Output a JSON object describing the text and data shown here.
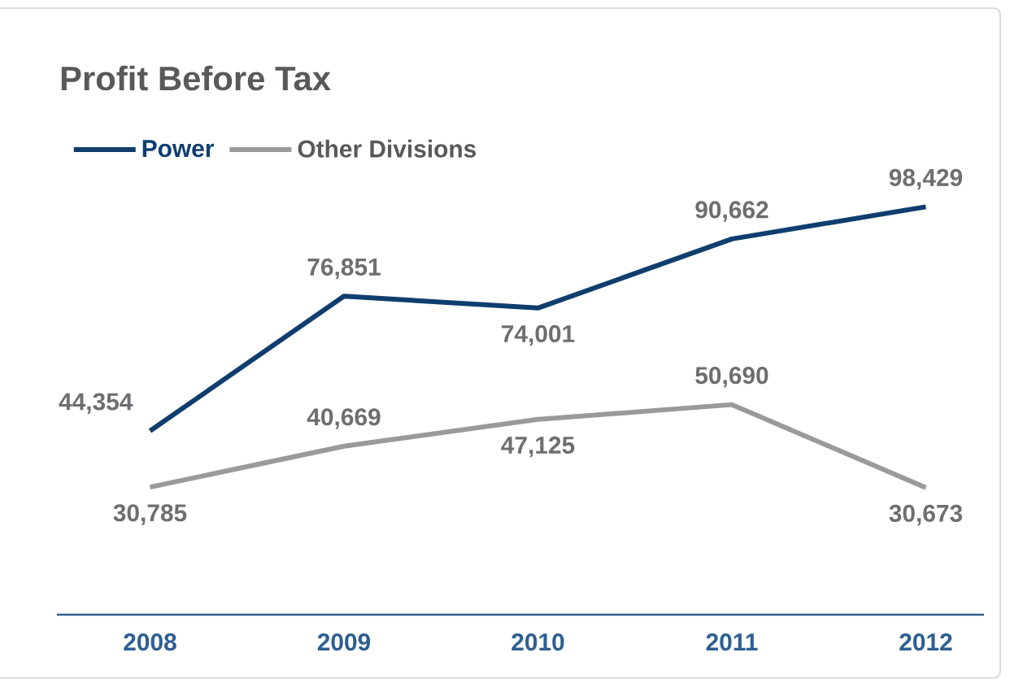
{
  "chart_data": {
    "type": "line",
    "title": "Profit Before Tax",
    "categories": [
      "2008",
      "2009",
      "2010",
      "2011",
      "2012"
    ],
    "series": [
      {
        "name": "Power",
        "color": "#0f3e6e",
        "values": [
          44354,
          76851,
          74001,
          90662,
          98429
        ],
        "value_labels": [
          "44,354",
          "76,851",
          "74,001",
          "90,662",
          "98,429"
        ]
      },
      {
        "name": "Other Divisions",
        "color": "#9a9a9a",
        "values": [
          30785,
          40669,
          47125,
          50690,
          30673
        ],
        "value_labels": [
          "30,785",
          "40,669",
          "47,125",
          "50,690",
          "30,673"
        ]
      }
    ],
    "legend": "top left",
    "marker": "none",
    "line_style": "solid"
  }
}
